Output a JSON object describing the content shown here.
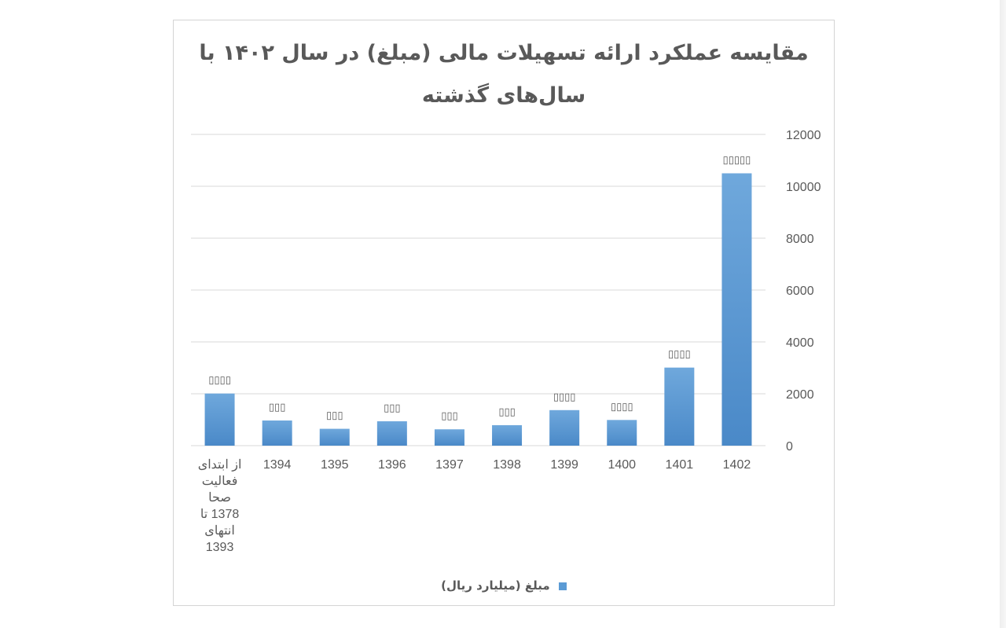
{
  "chart_data": {
    "type": "bar",
    "title_line1": "مقایسه عملکرد ارائه تسهیلات مالی (مبلغ) در سال ۱۴۰۲ با",
    "title_line2": "سال‌های گذشته",
    "categories": [
      "از ابتدای فعالیت صحا 1378 تا انتهای 1393",
      "1394",
      "1395",
      "1396",
      "1397",
      "1398",
      "1399",
      "1400",
      "1401",
      "1402"
    ],
    "series": [
      {
        "name": "مبلغ (میلیارد ریال)",
        "values": [
          2010,
          970,
          650,
          940,
          630,
          790,
          1370,
          990,
          3010,
          10500
        ],
        "color": "#5b9bd5"
      }
    ],
    "data_labels": [
      "▯▯▯▯",
      "▯▯▯",
      "▯▯▯",
      "▯▯▯",
      "▯▯▯",
      "▯▯▯",
      "▯▯▯▯",
      "▯▯▯▯",
      "▯▯▯▯",
      "▯▯▯▯▯"
    ],
    "ylim": [
      0,
      12000
    ],
    "yticks": [
      0,
      2000,
      4000,
      6000,
      8000,
      10000,
      12000
    ],
    "y_axis_position": "right",
    "grid": true,
    "legend_position": "bottom"
  }
}
